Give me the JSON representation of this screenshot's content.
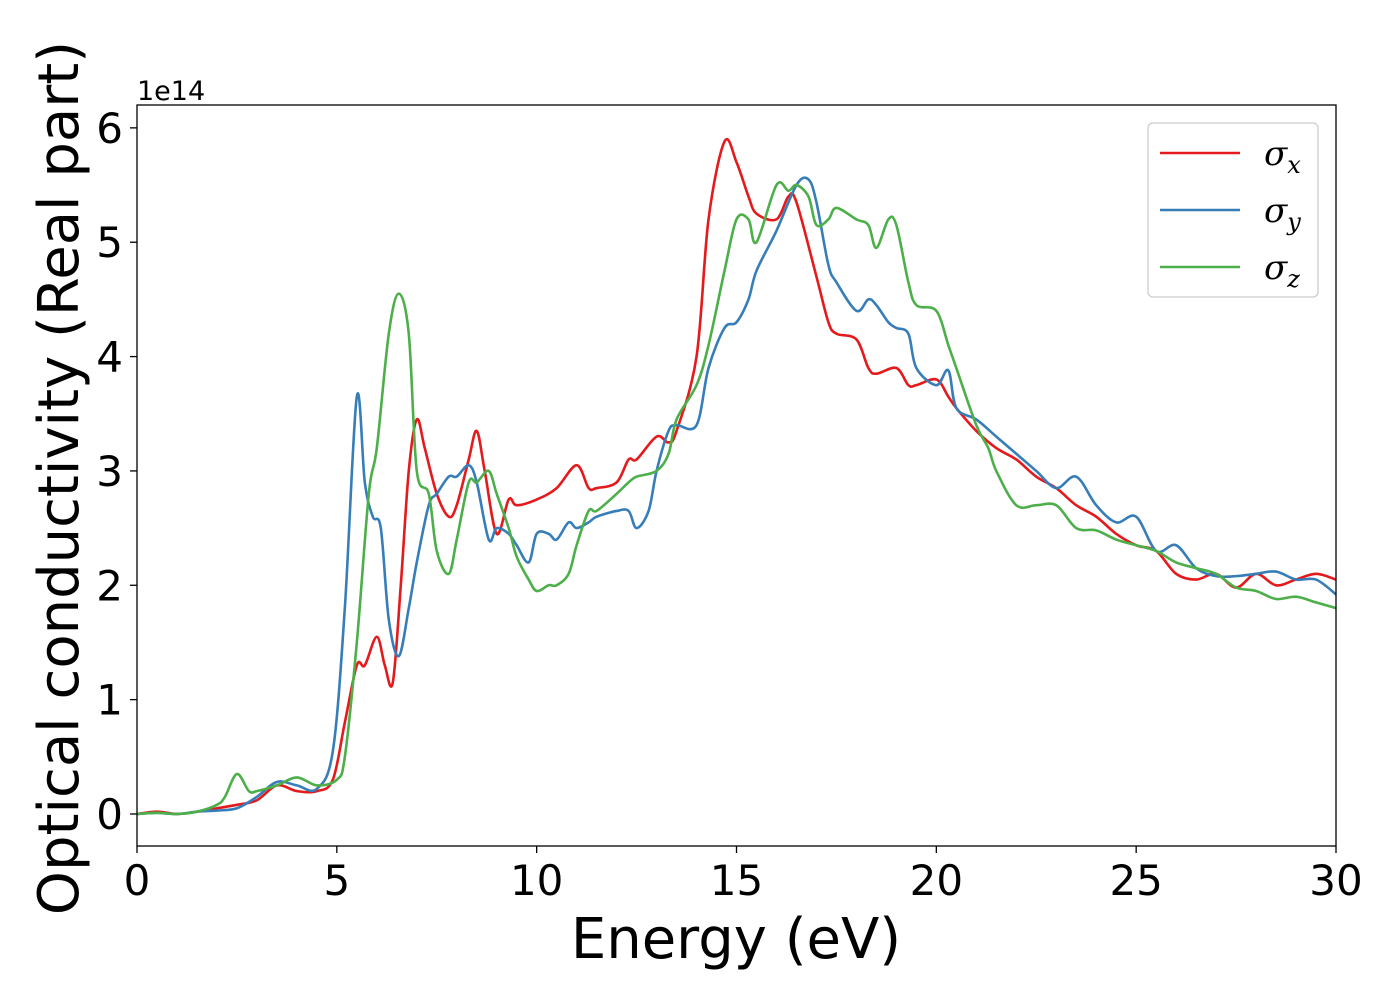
{
  "chart_data": {
    "type": "line",
    "xlabel": "Energy (eV)",
    "ylabel": "Optical conductivity (Real part)",
    "y_offset_label": "1e14",
    "xlim": [
      0,
      30
    ],
    "ylim": [
      -0.28,
      6.2
    ],
    "xticks": [
      0,
      5,
      10,
      15,
      20,
      25,
      30
    ],
    "xtick_labels": [
      "0",
      "5",
      "10",
      "15",
      "20",
      "25",
      "30"
    ],
    "yticks": [
      0,
      1,
      2,
      3,
      4,
      5,
      6
    ],
    "ytick_labels": [
      "0",
      "1",
      "2",
      "3",
      "4",
      "5",
      "6"
    ],
    "grid": false,
    "legend_position": "top-right",
    "series": [
      {
        "name": "σ",
        "subscript": "x",
        "color": "#e41a1c",
        "x": [
          0,
          0.5,
          1,
          1.5,
          2,
          2.5,
          3,
          3.5,
          4,
          4.5,
          4.9,
          5.2,
          5.5,
          5.7,
          6.0,
          6.2,
          6.4,
          6.6,
          6.8,
          7.0,
          7.2,
          7.5,
          7.8,
          8.0,
          8.3,
          8.5,
          8.7,
          9.0,
          9.3,
          9.5,
          10,
          10.5,
          11,
          11.3,
          11.5,
          12,
          12.3,
          12.5,
          13,
          13.3,
          13.5,
          14,
          14.3,
          14.7,
          15.0,
          15.3,
          15.5,
          16,
          16.3,
          16.5,
          17,
          17.3,
          17.5,
          18,
          18.3,
          18.5,
          19,
          19.3,
          19.5,
          20,
          20.3,
          20.5,
          21,
          21.5,
          22,
          22.5,
          23,
          23.5,
          24,
          24.5,
          25,
          25.5,
          26,
          26.5,
          27,
          27.5,
          28,
          28.5,
          29,
          29.5,
          30
        ],
        "y": [
          0.0,
          0.02,
          0.0,
          0.02,
          0.05,
          0.08,
          0.12,
          0.25,
          0.2,
          0.2,
          0.3,
          0.8,
          1.3,
          1.3,
          1.55,
          1.3,
          1.15,
          2.0,
          3.0,
          3.45,
          3.2,
          2.8,
          2.6,
          2.7,
          3.1,
          3.35,
          3.0,
          2.45,
          2.75,
          2.7,
          2.75,
          2.85,
          3.05,
          2.85,
          2.85,
          2.9,
          3.1,
          3.1,
          3.3,
          3.25,
          3.35,
          4.0,
          5.2,
          5.88,
          5.7,
          5.4,
          5.25,
          5.2,
          5.4,
          5.35,
          4.7,
          4.3,
          4.2,
          4.15,
          3.9,
          3.85,
          3.9,
          3.75,
          3.75,
          3.8,
          3.65,
          3.55,
          3.35,
          3.2,
          3.1,
          2.95,
          2.85,
          2.7,
          2.6,
          2.45,
          2.35,
          2.3,
          2.1,
          2.05,
          2.1,
          1.98,
          2.1,
          2.0,
          2.05,
          2.1,
          2.05
        ]
      },
      {
        "name": "σ",
        "subscript": "y",
        "color": "#377eb8",
        "x": [
          0,
          0.5,
          1,
          1.5,
          2,
          2.5,
          3,
          3.5,
          4,
          4.5,
          4.9,
          5.2,
          5.5,
          5.7,
          5.9,
          6.1,
          6.3,
          6.55,
          6.8,
          7.0,
          7.3,
          7.5,
          7.8,
          8.0,
          8.3,
          8.5,
          8.8,
          9.0,
          9.3,
          9.5,
          9.8,
          10,
          10.3,
          10.5,
          10.8,
          11,
          11.3,
          11.5,
          12,
          12.3,
          12.5,
          12.8,
          13,
          13.3,
          13.5,
          14,
          14.3,
          14.7,
          15.0,
          15.3,
          15.5,
          16,
          16.5,
          16.8,
          17.0,
          17.3,
          17.5,
          18,
          18.3,
          18.5,
          18.8,
          19,
          19.3,
          19.5,
          20,
          20.3,
          20.5,
          21,
          21.5,
          22,
          22.5,
          23,
          23.5,
          24,
          24.5,
          25,
          25.5,
          26,
          26.5,
          27,
          27.5,
          28,
          28.5,
          29,
          29.5,
          30
        ],
        "y": [
          0.0,
          0.01,
          0.0,
          0.02,
          0.03,
          0.05,
          0.15,
          0.28,
          0.25,
          0.22,
          0.55,
          1.8,
          3.65,
          2.9,
          2.6,
          2.5,
          1.7,
          1.38,
          1.8,
          2.2,
          2.7,
          2.8,
          2.95,
          2.95,
          3.05,
          2.9,
          2.4,
          2.5,
          2.45,
          2.35,
          2.2,
          2.45,
          2.45,
          2.4,
          2.55,
          2.5,
          2.55,
          2.6,
          2.65,
          2.65,
          2.5,
          2.65,
          3.0,
          3.35,
          3.4,
          3.4,
          3.9,
          4.25,
          4.3,
          4.5,
          4.75,
          5.1,
          5.5,
          5.55,
          5.35,
          4.8,
          4.65,
          4.4,
          4.5,
          4.45,
          4.3,
          4.25,
          4.2,
          3.9,
          3.75,
          3.88,
          3.55,
          3.45,
          3.3,
          3.15,
          3.0,
          2.85,
          2.95,
          2.7,
          2.55,
          2.6,
          2.3,
          2.35,
          2.15,
          2.08,
          2.08,
          2.1,
          2.12,
          2.05,
          2.05,
          1.92
        ]
      },
      {
        "name": "σ",
        "subscript": "z",
        "color": "#4daf4a",
        "x": [
          0,
          0.5,
          1,
          1.5,
          2,
          2.2,
          2.5,
          2.8,
          3.0,
          3.5,
          4,
          4.5,
          5.0,
          5.2,
          5.5,
          5.8,
          6.0,
          6.3,
          6.55,
          6.8,
          7.0,
          7.3,
          7.5,
          7.8,
          8.0,
          8.3,
          8.5,
          8.8,
          9.0,
          9.3,
          9.5,
          9.8,
          10,
          10.3,
          10.5,
          10.8,
          11,
          11.3,
          11.5,
          12,
          12.3,
          12.5,
          13,
          13.3,
          13.5,
          14,
          14.3,
          14.7,
          15.0,
          15.3,
          15.5,
          16,
          16.3,
          16.5,
          16.8,
          17.0,
          17.3,
          17.5,
          18,
          18.3,
          18.5,
          18.8,
          19,
          19.3,
          19.5,
          20,
          20.3,
          20.5,
          21,
          21.3,
          21.5,
          22,
          22.5,
          23,
          23.5,
          24,
          24.5,
          25,
          25.5,
          26,
          26.5,
          27,
          27.5,
          28,
          28.5,
          29,
          29.5,
          30
        ],
        "y": [
          0.0,
          0.01,
          0.0,
          0.02,
          0.08,
          0.15,
          0.35,
          0.2,
          0.2,
          0.25,
          0.32,
          0.25,
          0.3,
          0.5,
          1.5,
          2.8,
          3.2,
          4.2,
          4.55,
          4.2,
          3.0,
          2.8,
          2.3,
          2.1,
          2.4,
          2.9,
          2.9,
          3.0,
          2.8,
          2.5,
          2.25,
          2.05,
          1.95,
          2.0,
          2.0,
          2.1,
          2.35,
          2.65,
          2.65,
          2.8,
          2.9,
          2.95,
          3.0,
          3.15,
          3.45,
          3.75,
          4.1,
          4.75,
          5.2,
          5.2,
          5.0,
          5.5,
          5.45,
          5.5,
          5.4,
          5.15,
          5.2,
          5.3,
          5.2,
          5.15,
          4.95,
          5.2,
          5.15,
          4.65,
          4.45,
          4.4,
          4.1,
          3.9,
          3.4,
          3.2,
          3.0,
          2.7,
          2.7,
          2.7,
          2.5,
          2.48,
          2.4,
          2.35,
          2.3,
          2.2,
          2.15,
          2.1,
          1.98,
          1.95,
          1.88,
          1.9,
          1.85,
          1.8
        ]
      }
    ]
  }
}
